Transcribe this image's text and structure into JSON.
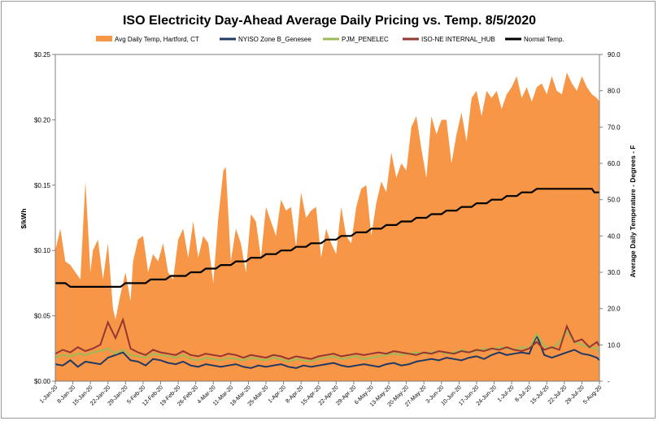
{
  "chart_data": {
    "type": "area",
    "title": "ISO Electricity Day-Ahead Average Daily Pricing vs. Temp. 8/5/2020",
    "ylabel": "$/kWh",
    "y2label": "Average Daily Temperature - Degrees - F",
    "ylim": [
      0,
      0.25
    ],
    "y2lim": [
      0,
      90
    ],
    "yticks": [
      "$0.00",
      "$0.05",
      "$0.10",
      "$0.15",
      "$0.20",
      "$0.25"
    ],
    "y2ticks": [
      "-",
      "10.0",
      "20.0",
      "30.0",
      "40.0",
      "50.0",
      "60.0",
      "70.0",
      "80.0",
      "90.0"
    ],
    "xticks": [
      "1-Jan-20",
      "8-Jan-20",
      "15-Jan-20",
      "22-Jan-20",
      "29-Jan-20",
      "5-Feb-20",
      "12-Feb-20",
      "19-Feb-20",
      "26-Feb-20",
      "4-Mar-20",
      "11-Mar-20",
      "18-Mar-20",
      "25-Mar-20",
      "1-Apr-20",
      "8-Apr-20",
      "15-Apr-20",
      "22-Apr-20",
      "29-Apr-20",
      "6-May-20",
      "13-May-20",
      "20-May-20",
      "27-May-20",
      "3-Jun-20",
      "10-Jun-20",
      "17-Jun-20",
      "24-Jun-20",
      "1-Jul-20",
      "8-Jul-20",
      "15-Jul-20",
      "22-Jul-20",
      "29-Jul-20",
      "5-Aug-20"
    ],
    "legend_position": "top",
    "grid": false,
    "series": [
      {
        "name": "Avg Daily Temp, Hartford, CT",
        "kind": "area",
        "axis": "right",
        "color": "#f79646",
        "x_index": [
          0,
          2,
          4,
          6,
          8,
          10,
          12,
          14,
          15,
          17,
          19,
          21,
          23,
          24,
          26,
          28,
          30,
          31,
          33,
          35,
          37,
          39,
          41,
          43,
          45,
          47,
          49,
          51,
          53,
          55,
          57,
          59,
          61,
          63,
          65,
          67,
          68,
          70,
          72,
          74,
          76,
          78,
          80,
          82,
          84,
          86,
          88,
          90,
          92,
          94,
          96,
          98,
          100,
          102,
          104,
          106,
          108,
          110,
          112,
          114,
          116,
          118,
          120,
          122,
          124,
          126,
          128,
          130,
          132,
          134,
          136,
          138,
          140,
          142,
          144,
          146,
          148,
          150,
          152,
          154,
          156,
          158,
          160,
          162,
          164,
          166,
          168,
          170,
          172,
          174,
          176,
          178,
          180,
          182,
          184,
          186,
          188,
          190,
          192,
          194,
          196,
          198,
          200,
          202,
          204,
          206,
          208,
          210,
          212,
          214,
          216,
          217
        ],
        "values": [
          36,
          42,
          33,
          32,
          30,
          28,
          55,
          30,
          36,
          39,
          28,
          38,
          20,
          17,
          24,
          30,
          22,
          33,
          39,
          40,
          30,
          35,
          33,
          38,
          30,
          28,
          39,
          42,
          34,
          44,
          34,
          40,
          38,
          27,
          45,
          58,
          59,
          33,
          42,
          38,
          30,
          46,
          44,
          34,
          48,
          44,
          40,
          50,
          47,
          48,
          37,
          52,
          45,
          47,
          48,
          34,
          42,
          38,
          35,
          48,
          40,
          38,
          48,
          53,
          54,
          40,
          49,
          55,
          52,
          63,
          56,
          60,
          58,
          70,
          73,
          64,
          56,
          73,
          68,
          72,
          72,
          60,
          68,
          74,
          66,
          78,
          80,
          73,
          80,
          78,
          80,
          75,
          79,
          81,
          84,
          78,
          81,
          77,
          81,
          82,
          79,
          84,
          80,
          79,
          85,
          82,
          80,
          84,
          81,
          79,
          78,
          77
        ]
      },
      {
        "name": "NYISO Zone B_Genesee",
        "kind": "line",
        "axis": "left",
        "color": "#1f3864",
        "x_index": [
          0,
          3,
          6,
          9,
          12,
          15,
          18,
          21,
          24,
          27,
          30,
          33,
          36,
          39,
          42,
          45,
          48,
          51,
          54,
          57,
          60,
          63,
          66,
          69,
          72,
          75,
          78,
          81,
          84,
          87,
          90,
          93,
          96,
          99,
          102,
          105,
          108,
          111,
          114,
          117,
          120,
          123,
          126,
          129,
          132,
          135,
          138,
          141,
          144,
          147,
          150,
          153,
          156,
          159,
          162,
          165,
          168,
          171,
          174,
          177,
          180,
          183,
          186,
          189,
          192,
          195,
          198,
          201,
          204,
          207,
          210,
          213,
          216,
          217
        ],
        "values": [
          0.013,
          0.012,
          0.016,
          0.011,
          0.015,
          0.014,
          0.013,
          0.018,
          0.02,
          0.022,
          0.016,
          0.015,
          0.012,
          0.017,
          0.016,
          0.014,
          0.013,
          0.015,
          0.012,
          0.011,
          0.013,
          0.012,
          0.011,
          0.012,
          0.013,
          0.011,
          0.01,
          0.012,
          0.011,
          0.012,
          0.013,
          0.011,
          0.01,
          0.012,
          0.011,
          0.012,
          0.013,
          0.014,
          0.012,
          0.011,
          0.012,
          0.013,
          0.012,
          0.011,
          0.013,
          0.014,
          0.012,
          0.013,
          0.015,
          0.016,
          0.017,
          0.016,
          0.018,
          0.017,
          0.016,
          0.018,
          0.019,
          0.017,
          0.02,
          0.022,
          0.02,
          0.021,
          0.022,
          0.021,
          0.035,
          0.02,
          0.018,
          0.02,
          0.022,
          0.024,
          0.021,
          0.02,
          0.018,
          0.016
        ]
      },
      {
        "name": "PJM_PENELEC",
        "kind": "line",
        "axis": "left",
        "color": "#9bbb59",
        "x_index": [
          0,
          3,
          6,
          9,
          12,
          15,
          18,
          21,
          24,
          27,
          30,
          33,
          36,
          39,
          42,
          45,
          48,
          51,
          54,
          57,
          60,
          63,
          66,
          69,
          72,
          75,
          78,
          81,
          84,
          87,
          90,
          93,
          96,
          99,
          102,
          105,
          108,
          111,
          114,
          117,
          120,
          123,
          126,
          129,
          132,
          135,
          138,
          141,
          144,
          147,
          150,
          153,
          156,
          159,
          162,
          165,
          168,
          171,
          174,
          177,
          180,
          183,
          186,
          189,
          192,
          195,
          198,
          201,
          204,
          207,
          210,
          213,
          216,
          217
        ],
        "values": [
          0.018,
          0.02,
          0.019,
          0.021,
          0.02,
          0.022,
          0.023,
          0.025,
          0.021,
          0.024,
          0.02,
          0.019,
          0.018,
          0.021,
          0.02,
          0.019,
          0.018,
          0.02,
          0.017,
          0.016,
          0.018,
          0.017,
          0.016,
          0.018,
          0.017,
          0.016,
          0.018,
          0.017,
          0.016,
          0.018,
          0.017,
          0.015,
          0.017,
          0.016,
          0.015,
          0.017,
          0.018,
          0.019,
          0.017,
          0.018,
          0.019,
          0.017,
          0.018,
          0.019,
          0.02,
          0.021,
          0.02,
          0.021,
          0.022,
          0.021,
          0.022,
          0.023,
          0.021,
          0.022,
          0.024,
          0.022,
          0.023,
          0.025,
          0.024,
          0.026,
          0.025,
          0.024,
          0.026,
          0.025,
          0.036,
          0.027,
          0.025,
          0.03,
          0.038,
          0.03,
          0.028,
          0.026,
          0.025,
          0.022
        ]
      },
      {
        "name": "ISO-NE INTERNAL_HUB",
        "kind": "line",
        "axis": "left",
        "color": "#943634",
        "x_index": [
          0,
          3,
          6,
          9,
          12,
          15,
          18,
          21,
          24,
          27,
          30,
          33,
          36,
          39,
          42,
          45,
          48,
          51,
          54,
          57,
          60,
          63,
          66,
          69,
          72,
          75,
          78,
          81,
          84,
          87,
          90,
          93,
          96,
          99,
          102,
          105,
          108,
          111,
          114,
          117,
          120,
          123,
          126,
          129,
          132,
          135,
          138,
          141,
          144,
          147,
          150,
          153,
          156,
          159,
          162,
          165,
          168,
          171,
          174,
          177,
          180,
          183,
          186,
          189,
          192,
          195,
          198,
          201,
          204,
          207,
          210,
          213,
          216,
          217
        ],
        "values": [
          0.021,
          0.024,
          0.022,
          0.026,
          0.023,
          0.025,
          0.028,
          0.045,
          0.033,
          0.047,
          0.025,
          0.022,
          0.02,
          0.024,
          0.022,
          0.021,
          0.02,
          0.023,
          0.02,
          0.019,
          0.021,
          0.02,
          0.019,
          0.021,
          0.02,
          0.018,
          0.02,
          0.019,
          0.018,
          0.02,
          0.019,
          0.017,
          0.019,
          0.018,
          0.017,
          0.019,
          0.02,
          0.021,
          0.019,
          0.02,
          0.021,
          0.02,
          0.021,
          0.022,
          0.021,
          0.023,
          0.022,
          0.021,
          0.02,
          0.022,
          0.021,
          0.023,
          0.022,
          0.021,
          0.023,
          0.022,
          0.024,
          0.023,
          0.025,
          0.024,
          0.026,
          0.024,
          0.023,
          0.025,
          0.03,
          0.024,
          0.026,
          0.024,
          0.042,
          0.03,
          0.032,
          0.026,
          0.03,
          0.027
        ]
      },
      {
        "name": "Normal Temp.",
        "kind": "step",
        "axis": "right",
        "color": "#000000",
        "x_index": [
          0,
          4,
          6,
          26,
          28,
          36,
          38,
          44,
          46,
          52,
          54,
          58,
          60,
          64,
          66,
          70,
          72,
          76,
          78,
          82,
          84,
          88,
          90,
          94,
          96,
          100,
          102,
          106,
          108,
          112,
          114,
          118,
          120,
          124,
          126,
          130,
          132,
          136,
          138,
          142,
          144,
          148,
          150,
          154,
          156,
          160,
          162,
          166,
          168,
          172,
          174,
          178,
          180,
          184,
          186,
          190,
          192,
          214,
          215,
          217
        ],
        "values": [
          27,
          27,
          26,
          26,
          27,
          27,
          28,
          28,
          29,
          29,
          30,
          30,
          31,
          31,
          32,
          32,
          33,
          33,
          34,
          34,
          35,
          35,
          36,
          36,
          37,
          37,
          38,
          38,
          39,
          39,
          40,
          40,
          41,
          41,
          42,
          42,
          43,
          43,
          44,
          44,
          45,
          45,
          46,
          46,
          47,
          47,
          48,
          48,
          49,
          49,
          50,
          50,
          51,
          51,
          52,
          52,
          53,
          53,
          52,
          52
        ]
      }
    ],
    "n_days": 218
  }
}
